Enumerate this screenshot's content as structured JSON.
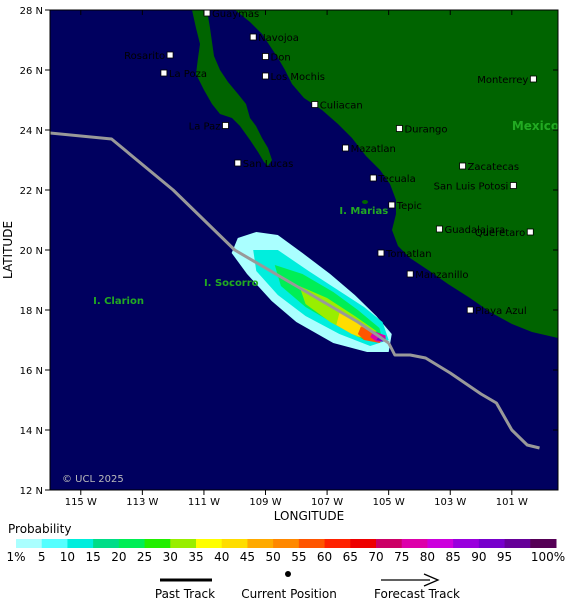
{
  "map": {
    "x_axis_title": "LONGITUDE",
    "y_axis_title": "LATITUDE",
    "copyright": "© UCL 2025",
    "lon_ticks": [
      {
        "lon": -115,
        "label": "115 W"
      },
      {
        "lon": -113,
        "label": "113 W"
      },
      {
        "lon": -111,
        "label": "111 W"
      },
      {
        "lon": -109,
        "label": "109 W"
      },
      {
        "lon": -107,
        "label": "107 W"
      },
      {
        "lon": -105,
        "label": "105 W"
      },
      {
        "lon": -103,
        "label": "103 W"
      },
      {
        "lon": -101,
        "label": "101 W"
      }
    ],
    "lat_ticks": [
      {
        "lat": 28,
        "label": "28 N"
      },
      {
        "lat": 26,
        "label": "26 N"
      },
      {
        "lat": 24,
        "label": "24 N"
      },
      {
        "lat": 22,
        "label": "22 N"
      },
      {
        "lat": 20,
        "label": "20 N"
      },
      {
        "lat": 18,
        "label": "18 N"
      },
      {
        "lat": 16,
        "label": "16 N"
      },
      {
        "lat": 14,
        "label": "14 N"
      },
      {
        "lat": 12,
        "label": "12 N"
      }
    ],
    "cities": [
      {
        "name": "Guaymas",
        "lon": -110.9,
        "lat": 27.9,
        "label_side": "right"
      },
      {
        "name": "Navojoa",
        "lon": -109.4,
        "lat": 27.1,
        "label_side": "right"
      },
      {
        "name": "Rosarito",
        "lon": -112.1,
        "lat": 26.5,
        "label_side": "left"
      },
      {
        "name": "Don",
        "lon": -109.0,
        "lat": 26.45,
        "label_side": "right"
      },
      {
        "name": "La Poza",
        "lon": -112.3,
        "lat": 25.9,
        "label_side": "right"
      },
      {
        "name": "Los Mochis",
        "lon": -109.0,
        "lat": 25.8,
        "label_side": "right"
      },
      {
        "name": "Monterrey",
        "lon": -100.3,
        "lat": 25.7,
        "label_side": "left"
      },
      {
        "name": "Culiacan",
        "lon": -107.4,
        "lat": 24.85,
        "label_side": "right"
      },
      {
        "name": "La Paz",
        "lon": -110.3,
        "lat": 24.15,
        "label_side": "left"
      },
      {
        "name": "Durango",
        "lon": -104.65,
        "lat": 24.05,
        "label_side": "right"
      },
      {
        "name": "Mazatlan",
        "lon": -106.4,
        "lat": 23.4,
        "label_side": "right"
      },
      {
        "name": "San Lucas",
        "lon": -109.9,
        "lat": 22.9,
        "label_side": "right"
      },
      {
        "name": "Zacatecas",
        "lon": -102.6,
        "lat": 22.8,
        "label_side": "right"
      },
      {
        "name": "Tecuala",
        "lon": -105.5,
        "lat": 22.4,
        "label_side": "right"
      },
      {
        "name": "San Luis Potosi",
        "lon": -100.95,
        "lat": 22.15,
        "label_side": "left"
      },
      {
        "name": "Tepic",
        "lon": -104.9,
        "lat": 21.5,
        "label_side": "right"
      },
      {
        "name": "Guadalajara",
        "lon": -103.35,
        "lat": 20.7,
        "label_side": "right"
      },
      {
        "name": "Queretaro",
        "lon": -100.4,
        "lat": 20.6,
        "label_side": "left"
      },
      {
        "name": "Tomatlan",
        "lon": -105.25,
        "lat": 19.9,
        "label_side": "right"
      },
      {
        "name": "Manzanillo",
        "lon": -104.3,
        "lat": 19.2,
        "label_side": "right"
      },
      {
        "name": "Playa Azul",
        "lon": -102.35,
        "lat": 18.0,
        "label_side": "right"
      }
    ],
    "regions": [
      {
        "name": "I. Marias",
        "lon": -106.6,
        "lat": 21.2
      },
      {
        "name": "I. Socorro",
        "lon": -111.0,
        "lat": 18.8
      },
      {
        "name": "I. Clarion",
        "lon": -114.6,
        "lat": 18.2
      }
    ],
    "country_label": {
      "name": "Mexico",
      "lon": -101.0,
      "lat": 24.0
    },
    "colors": {
      "ocean": "#00005f",
      "land": "#006400",
      "track": "#999999",
      "region_label": "#22aa22"
    },
    "past_track": [
      [
        -116.0,
        23.9
      ],
      [
        -114.0,
        23.7
      ],
      [
        -112.0,
        22.0
      ],
      [
        -110.0,
        20.0
      ],
      [
        -108.0,
        18.8
      ],
      [
        -106.0,
        17.6
      ],
      [
        -105.0,
        16.9
      ]
    ],
    "forecast_track": [
      [
        -105.0,
        16.9
      ],
      [
        -104.8,
        16.5
      ],
      [
        -104.3,
        16.5
      ],
      [
        -103.8,
        16.4
      ],
      [
        -103.0,
        15.9
      ],
      [
        -102.0,
        15.2
      ],
      [
        -101.5,
        14.9
      ],
      [
        -101.0,
        14.0
      ],
      [
        -100.5,
        13.5
      ],
      [
        -100.1,
        13.4
      ]
    ],
    "probability_swath": [
      {
        "pct": 1,
        "poly": [
          [
            -109.9,
            20.4
          ],
          [
            -109.3,
            20.6
          ],
          [
            -108.6,
            20.5
          ],
          [
            -107.8,
            19.9
          ],
          [
            -106.9,
            19.2
          ],
          [
            -106.1,
            18.5
          ],
          [
            -105.4,
            17.8
          ],
          [
            -104.9,
            17.2
          ],
          [
            -105.0,
            16.6
          ],
          [
            -105.7,
            16.6
          ],
          [
            -106.8,
            16.9
          ],
          [
            -108.0,
            17.6
          ],
          [
            -108.8,
            18.3
          ],
          [
            -109.6,
            19.2
          ],
          [
            -110.1,
            19.9
          ]
        ]
      },
      {
        "pct": 10,
        "poly": [
          [
            -109.4,
            20.0
          ],
          [
            -108.6,
            20.0
          ],
          [
            -107.6,
            19.3
          ],
          [
            -106.7,
            18.7
          ],
          [
            -105.8,
            18.1
          ],
          [
            -105.2,
            17.6
          ],
          [
            -105.0,
            17.0
          ],
          [
            -105.6,
            16.8
          ],
          [
            -106.6,
            17.2
          ],
          [
            -107.7,
            17.8
          ],
          [
            -108.6,
            18.5
          ],
          [
            -109.3,
            19.3
          ]
        ]
      },
      {
        "pct": 20,
        "poly": [
          [
            -108.7,
            19.5
          ],
          [
            -107.8,
            19.2
          ],
          [
            -106.8,
            18.6
          ],
          [
            -106.0,
            18.0
          ],
          [
            -105.3,
            17.4
          ],
          [
            -105.2,
            17.0
          ],
          [
            -105.8,
            17.0
          ],
          [
            -106.7,
            17.5
          ],
          [
            -107.7,
            18.1
          ],
          [
            -108.5,
            18.8
          ]
        ]
      },
      {
        "pct": 30,
        "poly": [
          [
            -107.9,
            18.8
          ],
          [
            -107.0,
            18.4
          ],
          [
            -106.1,
            17.8
          ],
          [
            -105.4,
            17.3
          ],
          [
            -105.4,
            17.0
          ],
          [
            -106.0,
            17.1
          ],
          [
            -106.9,
            17.6
          ],
          [
            -107.7,
            18.2
          ]
        ]
      },
      {
        "pct": 40,
        "poly": [
          [
            -106.6,
            17.9
          ],
          [
            -105.9,
            17.5
          ],
          [
            -105.4,
            17.2
          ],
          [
            -105.6,
            17.0
          ],
          [
            -106.2,
            17.2
          ],
          [
            -106.7,
            17.5
          ]
        ]
      },
      {
        "pct": 55,
        "poly": [
          [
            -105.9,
            17.45
          ],
          [
            -105.4,
            17.25
          ],
          [
            -105.1,
            17.1
          ],
          [
            -105.3,
            16.9
          ],
          [
            -105.8,
            17.0
          ],
          [
            -106.0,
            17.2
          ]
        ]
      },
      {
        "pct": 75,
        "poly": [
          [
            -105.5,
            17.3
          ],
          [
            -105.1,
            17.15
          ],
          [
            -105.1,
            16.95
          ],
          [
            -105.4,
            16.95
          ],
          [
            -105.6,
            17.1
          ]
        ]
      },
      {
        "pct": 90,
        "poly": [
          [
            -105.3,
            17.15
          ],
          [
            -105.1,
            17.05
          ],
          [
            -105.2,
            16.95
          ],
          [
            -105.4,
            17.0
          ]
        ]
      }
    ]
  },
  "legend": {
    "title": "Probability",
    "swatches": [
      {
        "label": "1%",
        "color": "#aaffff"
      },
      {
        "label": "5",
        "color": "#55ffff"
      },
      {
        "label": "10",
        "color": "#00eedd"
      },
      {
        "label": "15",
        "color": "#00dd88"
      },
      {
        "label": "20",
        "color": "#00ee55"
      },
      {
        "label": "25",
        "color": "#22ee00"
      },
      {
        "label": "30",
        "color": "#99ee00"
      },
      {
        "label": "35",
        "color": "#ffff00"
      },
      {
        "label": "40",
        "color": "#ffdd00"
      },
      {
        "label": "45",
        "color": "#ffaa00"
      },
      {
        "label": "50",
        "color": "#ff8800"
      },
      {
        "label": "55",
        "color": "#ff5500"
      },
      {
        "label": "60",
        "color": "#ff2200"
      },
      {
        "label": "65",
        "color": "#ee0000"
      },
      {
        "label": "70",
        "color": "#cc0066"
      },
      {
        "label": "75",
        "color": "#dd00aa"
      },
      {
        "label": "80",
        "color": "#cc00dd"
      },
      {
        "label": "85",
        "color": "#9900dd"
      },
      {
        "label": "90",
        "color": "#7700cc"
      },
      {
        "label": "95",
        "color": "#660099"
      },
      {
        "label": "100%",
        "color": "#550055"
      }
    ],
    "past_track_label": "Past Track",
    "current_position_label": "Current Position",
    "forecast_track_label": "Forecast Track"
  }
}
